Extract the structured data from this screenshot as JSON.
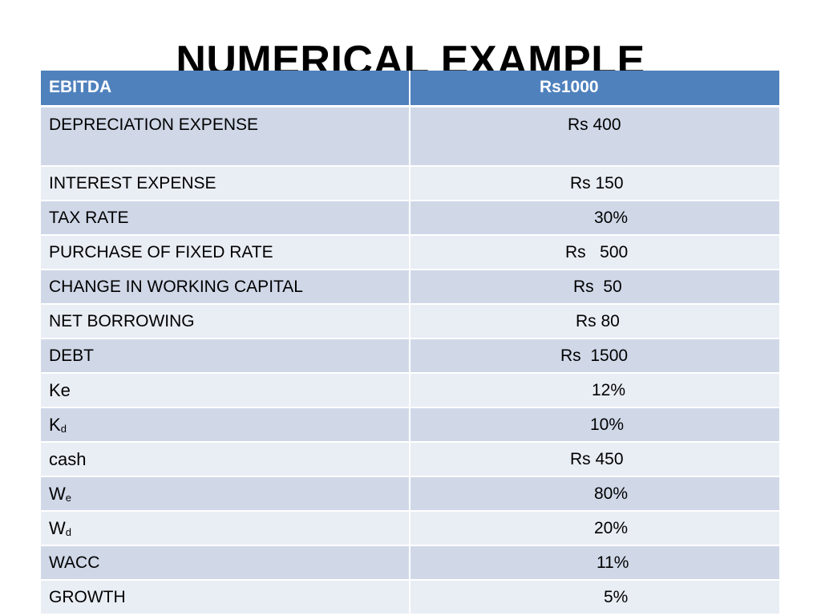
{
  "title": "NUMERICAL EXAMPLE",
  "header": {
    "label": "EBITDA",
    "value": "Rs1000"
  },
  "rows": [
    {
      "label": "DEPRECIATION EXPENSE",
      "value": "Rs 400"
    },
    {
      "label": "INTEREST EXPENSE",
      "value": "Rs 150"
    },
    {
      "label": "TAX RATE",
      "value": "30%"
    },
    {
      "label": "PURCHASE OF FIXED RATE",
      "value": "Rs   500"
    },
    {
      "label": "CHANGE IN WORKING CAPITAL",
      "value": "Rs  50"
    },
    {
      "label": "NET BORROWING",
      "value": "Rs 80"
    },
    {
      "label": "DEBT",
      "value": "Rs  1500"
    },
    {
      "label": "Ke",
      "value": "12%"
    },
    {
      "label_main": "K",
      "label_sub": "d",
      "value": "10%"
    },
    {
      "label": "cash",
      "value": "Rs 450"
    },
    {
      "label_main": "W",
      "label_sub": "e",
      "value": "80%"
    },
    {
      "label_main": "W",
      "label_sub": "d",
      "value": "20%"
    },
    {
      "label": "WACC",
      "value": "11%"
    },
    {
      "label": "GROWTH",
      "value": "5%"
    }
  ]
}
